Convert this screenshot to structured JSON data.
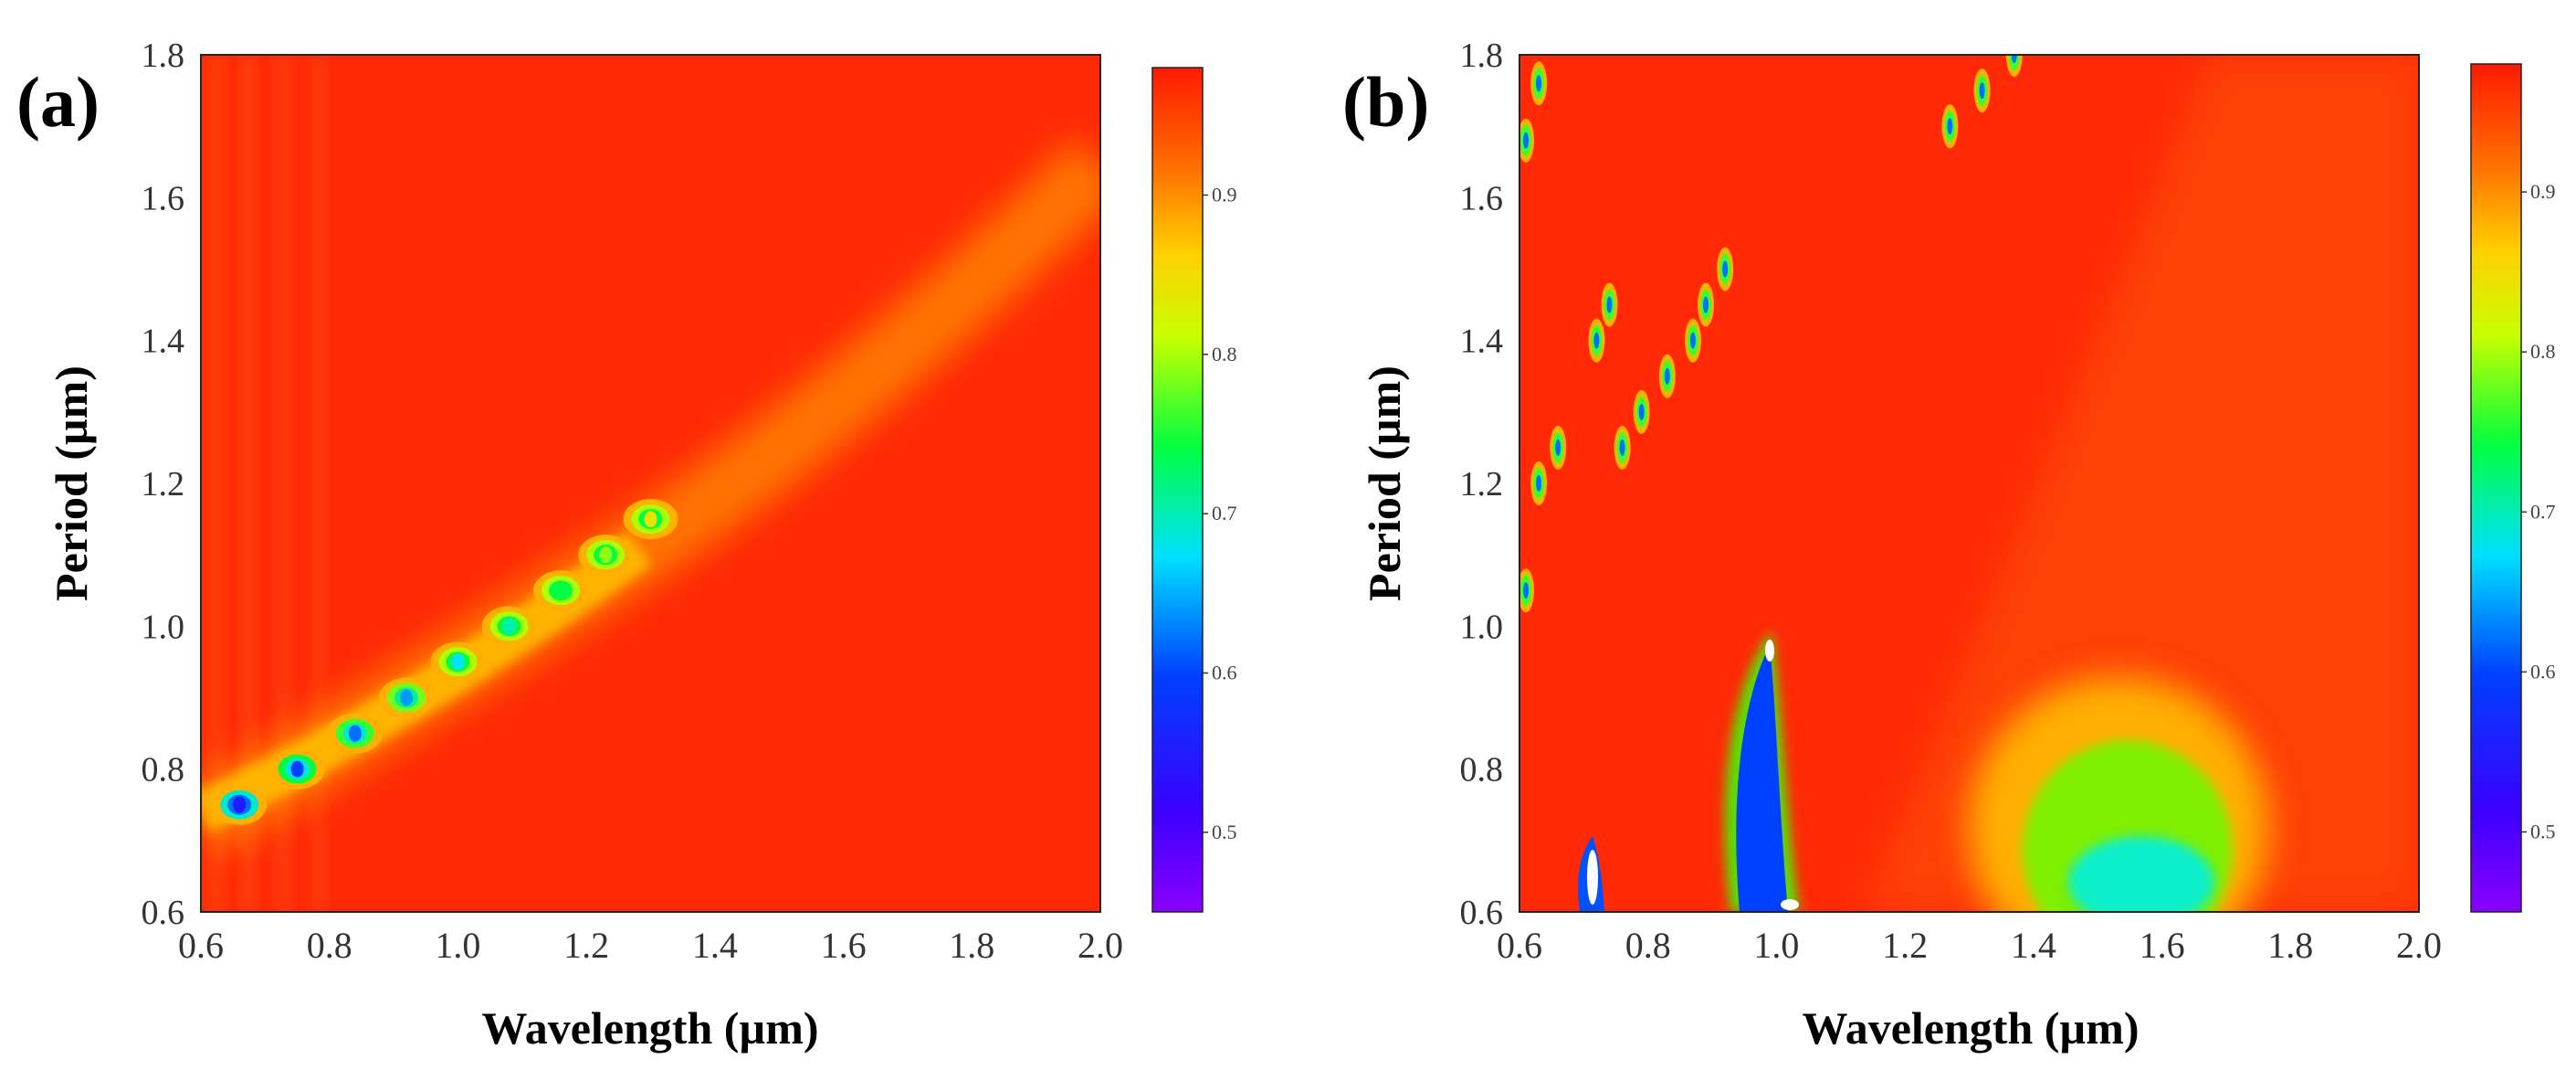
{
  "chart_data": [
    {
      "type": "heatmap",
      "panel": "(a)",
      "title": "",
      "xlabel": "Wavelength (µm)",
      "ylabel": "Period  (µm)",
      "xlim": [
        0.6,
        2.0
      ],
      "ylim": [
        0.6,
        1.8
      ],
      "x_ticks": [
        "0.6",
        "0.8",
        "1.0",
        "1.2",
        "1.4",
        "1.6",
        "1.8",
        "2.0"
      ],
      "y_ticks": [
        "0.6",
        "0.8",
        "1.0",
        "1.2",
        "1.4",
        "1.6",
        "1.8"
      ],
      "colorbar": {
        "min": 0.45,
        "max": 0.98,
        "ticks": [
          "0.5",
          "0.6",
          "0.7",
          "0.8",
          "0.9"
        ]
      },
      "background_value": 0.96,
      "minima": [
        {
          "wavelength": 0.66,
          "period": 0.75,
          "value": 0.55
        },
        {
          "wavelength": 0.75,
          "period": 0.8,
          "value": 0.6
        },
        {
          "wavelength": 0.84,
          "period": 0.85,
          "value": 0.62
        },
        {
          "wavelength": 0.92,
          "period": 0.9,
          "value": 0.64
        },
        {
          "wavelength": 1.0,
          "period": 0.95,
          "value": 0.67
        },
        {
          "wavelength": 1.08,
          "period": 1.0,
          "value": 0.7
        },
        {
          "wavelength": 1.16,
          "period": 1.05,
          "value": 0.74
        },
        {
          "wavelength": 1.23,
          "period": 1.1,
          "value": 0.79
        },
        {
          "wavelength": 1.3,
          "period": 1.15,
          "value": 0.84
        }
      ]
    },
    {
      "type": "heatmap",
      "panel": "(b)",
      "title": "",
      "xlabel": "Wavelength (µm)",
      "ylabel": "Period  (µm)",
      "xlim": [
        0.6,
        2.0
      ],
      "ylim": [
        0.6,
        1.8
      ],
      "x_ticks": [
        "0.6",
        "0.8",
        "1.0",
        "1.2",
        "1.4",
        "1.6",
        "1.8",
        "2.0"
      ],
      "y_ticks": [
        "0.6",
        "0.8",
        "1.0",
        "1.2",
        "1.4",
        "1.6",
        "1.8"
      ],
      "colorbar": {
        "min": 0.45,
        "max": 0.98,
        "ticks": [
          "0.5",
          "0.6",
          "0.7",
          "0.8",
          "0.9"
        ]
      },
      "background_value": 0.95,
      "features": [
        {
          "name": "narrow resonance near 1.0 um",
          "wavelength": 0.97,
          "period_range": [
            0.6,
            0.97
          ],
          "min_value": 0.45
        },
        {
          "name": "resonance near 0.71 um",
          "wavelength": 0.71,
          "period_range": [
            0.6,
            0.68
          ],
          "min_value": 0.45
        },
        {
          "name": "broad dip near 1.6 um",
          "wavelength": 1.58,
          "period_range": [
            0.6,
            0.88
          ],
          "min_value": 0.68
        }
      ],
      "minima_chain_1": [
        {
          "wavelength": 0.61,
          "period": 1.05
        },
        {
          "wavelength": 0.63,
          "period": 1.2
        },
        {
          "wavelength": 0.66,
          "period": 1.25
        },
        {
          "wavelength": 0.72,
          "period": 1.4
        },
        {
          "wavelength": 0.74,
          "period": 1.45
        },
        {
          "wavelength": 0.61,
          "period": 1.68
        },
        {
          "wavelength": 0.63,
          "period": 1.76
        }
      ],
      "minima_chain_2": [
        {
          "wavelength": 0.76,
          "period": 1.25
        },
        {
          "wavelength": 0.79,
          "period": 1.3
        },
        {
          "wavelength": 0.83,
          "period": 1.35
        },
        {
          "wavelength": 0.87,
          "period": 1.4
        },
        {
          "wavelength": 0.89,
          "period": 1.45
        },
        {
          "wavelength": 0.92,
          "period": 1.5
        },
        {
          "wavelength": 1.27,
          "period": 1.7
        },
        {
          "wavelength": 1.32,
          "period": 1.75
        },
        {
          "wavelength": 1.37,
          "period": 1.8
        }
      ]
    }
  ]
}
